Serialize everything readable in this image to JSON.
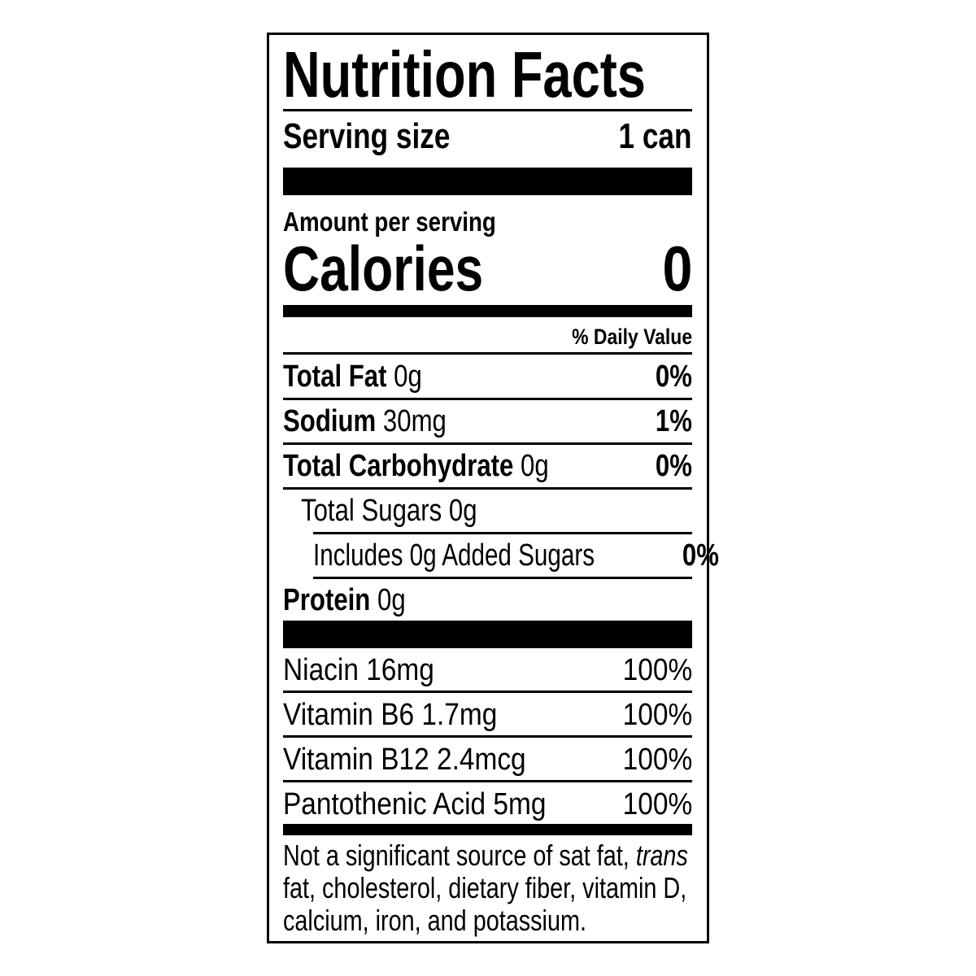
{
  "title": "Nutrition Facts",
  "serving": {
    "label": "Serving size",
    "value": "1 can"
  },
  "amount_per_serving": "Amount per serving",
  "calories": {
    "label": "Calories",
    "value": "0"
  },
  "daily_value_header": "% Daily Value",
  "nutrients": [
    {
      "name": "Total Fat",
      "amount": "0g",
      "dv": "0%"
    },
    {
      "name": "Sodium",
      "amount": "30mg",
      "dv": "1%"
    },
    {
      "name": "Total Carbohydrate",
      "amount": "0g",
      "dv": "0%"
    }
  ],
  "total_sugars": "Total Sugars 0g",
  "added_sugars": {
    "label": "Includes 0g Added Sugars",
    "dv": "0%"
  },
  "protein": {
    "name": "Protein",
    "amount": "0g"
  },
  "vitamins": [
    {
      "label": "Niacin 16mg",
      "dv": "100%"
    },
    {
      "label": "Vitamin B6 1.7mg",
      "dv": "100%"
    },
    {
      "label": "Vitamin B12 2.4mcg",
      "dv": "100%"
    },
    {
      "label": "Pantothenic Acid 5mg",
      "dv": "100%"
    }
  ],
  "footnote": {
    "line1": "Not a significant source of sat fat, ",
    "line1_italic": "trans",
    "line2": "fat, cholesterol, dietary fiber, vitamin D,",
    "line3": "calcium, iron, and potassium."
  }
}
